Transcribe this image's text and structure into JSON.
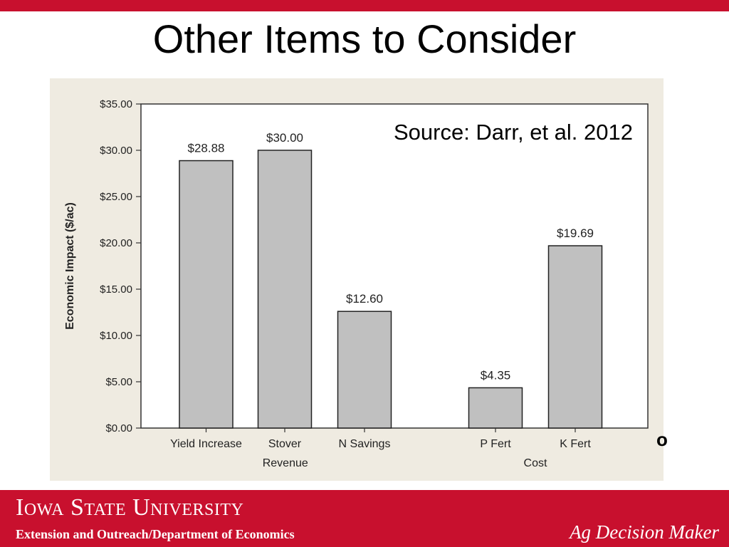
{
  "slide": {
    "title": "Other Items to Consider",
    "source": "Source:  Darr, et al. 2012",
    "stray_mark": "o"
  },
  "footer": {
    "university": "Iowa State University",
    "department": "Extension and Outreach/Department of Economics",
    "tagline": "Ag Decision Maker"
  },
  "colors": {
    "brand_red": "#c8102e",
    "panel_bg": "#efebe1",
    "bar_fill": "#c0c0c0"
  },
  "chart_data": {
    "type": "bar",
    "title": "",
    "ylabel": "Economic Impact ($/ac)",
    "xlabel": "",
    "ylim": [
      0,
      35
    ],
    "yticks": [
      0,
      5,
      10,
      15,
      20,
      25,
      30,
      35
    ],
    "ytick_labels": [
      "$0.00",
      "$5.00",
      "$10.00",
      "$15.00",
      "$20.00",
      "$25.00",
      "$30.00",
      "$35.00"
    ],
    "categories": [
      "Yield Increase",
      "Stover",
      "N Savings",
      "P Fert",
      "K Fert"
    ],
    "values": [
      28.88,
      30.0,
      12.6,
      4.35,
      19.69
    ],
    "data_labels": [
      "$28.88",
      "$30.00",
      "$12.60",
      "$4.35",
      "$19.69"
    ],
    "groups": [
      {
        "name": "Revenue",
        "categories": [
          "Yield Increase",
          "Stover",
          "N Savings"
        ]
      },
      {
        "name": "Cost",
        "categories": [
          "P Fert",
          "K Fert"
        ]
      }
    ],
    "grid": false
  }
}
